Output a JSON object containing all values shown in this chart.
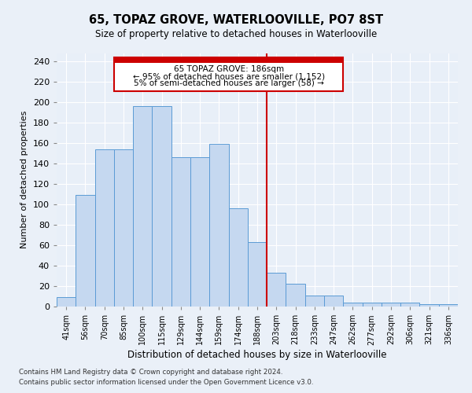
{
  "title": "65, TOPAZ GROVE, WATERLOOVILLE, PO7 8ST",
  "subtitle": "Size of property relative to detached houses in Waterlooville",
  "xlabel": "Distribution of detached houses by size in Waterlooville",
  "ylabel": "Number of detached properties",
  "footnote1": "Contains HM Land Registry data © Crown copyright and database right 2024.",
  "footnote2": "Contains public sector information licensed under the Open Government Licence v3.0.",
  "categories": [
    "41sqm",
    "56sqm",
    "70sqm",
    "85sqm",
    "100sqm",
    "115sqm",
    "129sqm",
    "144sqm",
    "159sqm",
    "174sqm",
    "188sqm",
    "203sqm",
    "218sqm",
    "233sqm",
    "247sqm",
    "262sqm",
    "277sqm",
    "292sqm",
    "306sqm",
    "321sqm",
    "336sqm"
  ],
  "bar_heights": [
    9,
    109,
    154,
    154,
    196,
    196,
    146,
    146,
    159,
    96,
    63,
    33,
    22,
    11,
    11,
    4,
    4,
    4,
    4,
    2,
    2
  ],
  "bar_color": "#c5d8f0",
  "bar_edge_color": "#5b9bd5",
  "fig_bg_color": "#eaf0f8",
  "plot_bg_color": "#e8eff8",
  "grid_color": "#ffffff",
  "vline_color": "#cc0000",
  "annotation_line1": "65 TOPAZ GROVE: 186sqm",
  "annotation_line2": "← 95% of detached houses are smaller (1,152)",
  "annotation_line3": "5% of semi-detached houses are larger (58) →",
  "ylim": [
    0,
    248
  ],
  "yticks": [
    0,
    20,
    40,
    60,
    80,
    100,
    120,
    140,
    160,
    180,
    200,
    220,
    240
  ]
}
